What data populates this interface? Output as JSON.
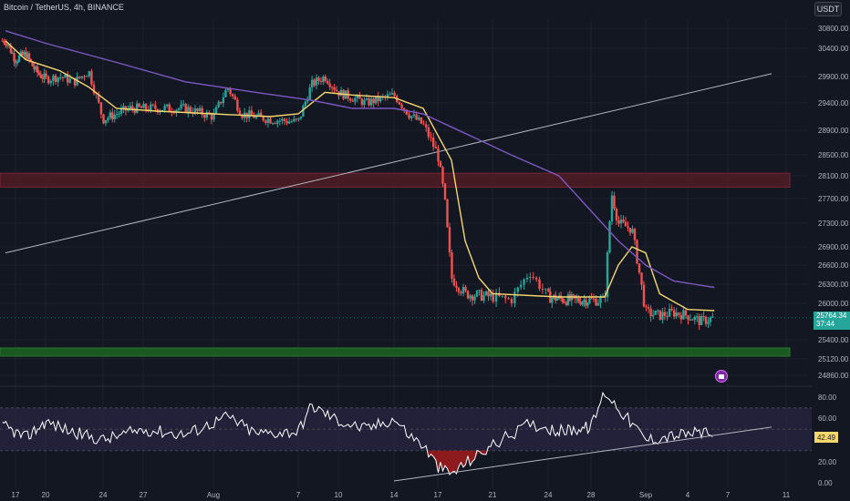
{
  "header": {
    "title": "Bitcoin / TetherUS, 4h, BINANCE",
    "currency_button": "USDT"
  },
  "price_axis_ticks": [
    "30800.00",
    "30400.00",
    "29900.00",
    "29400.00",
    "28900.00",
    "28500.00",
    "28100.00",
    "27700.00",
    "27300.00",
    "26900.00",
    "26600.00",
    "26300.00",
    "26000.00",
    "25400.00",
    "25120.00",
    "24860.00"
  ],
  "rsi_axis_ticks": [
    "80.00",
    "60.00",
    "20.00",
    "0.00"
  ],
  "time_axis_ticks": [
    "17",
    "20",
    "24",
    "27",
    "Aug",
    "7",
    "10",
    "14",
    "17",
    "21",
    "24",
    "28",
    "Sep",
    "4",
    "7",
    "11"
  ],
  "last_price": {
    "price": "25764.34",
    "countdown": "37:44"
  },
  "rsi_value": "42.49",
  "colors": {
    "background": "#131722",
    "up": "#26a69a",
    "down": "#ef5350",
    "ma_fast": "#f5d76e",
    "ma_slow": "#7e57c2",
    "resistance_zone": "#4a1c25",
    "support_zone": "#1b5e20",
    "trendline": "#b2b5be",
    "rsi_line": "#ffffff",
    "rsi_band": "#2a2443",
    "oversold_fill": "#b71c1c"
  },
  "chart_data": [
    {
      "type": "candlestick",
      "title": "Bitcoin / TetherUS, 4h, BINANCE",
      "y_axis_unit": "USDT",
      "ylim": [
        24760,
        30960
      ],
      "x_ticks": [
        "17",
        "20",
        "24",
        "27",
        "Aug",
        "7",
        "10",
        "14",
        "17",
        "21",
        "24",
        "28",
        "Sep",
        "4",
        "7",
        "11"
      ],
      "y_ticks": [
        30800,
        30400,
        29900,
        29400,
        28900,
        28500,
        28100,
        27700,
        27300,
        26900,
        26600,
        26300,
        26000,
        25400,
        25120,
        24860
      ],
      "price_anchors": [
        {
          "x": "Jul 16",
          "price": 30550
        },
        {
          "x": "Jul 17",
          "price": 30200
        },
        {
          "x": "Jul 18",
          "price": 30300
        },
        {
          "x": "Jul 19",
          "price": 30000
        },
        {
          "x": "Jul 20",
          "price": 29850
        },
        {
          "x": "Jul 21",
          "price": 29900
        },
        {
          "x": "Jul 22",
          "price": 29800
        },
        {
          "x": "Jul 23",
          "price": 30000
        },
        {
          "x": "Jul 24",
          "price": 29100
        },
        {
          "x": "Jul 26",
          "price": 29300
        },
        {
          "x": "Jul 28",
          "price": 29300
        },
        {
          "x": "Jul 30",
          "price": 29300
        },
        {
          "x": "Aug 1",
          "price": 29150
        },
        {
          "x": "Aug 2",
          "price": 29700
        },
        {
          "x": "Aug 3",
          "price": 29200
        },
        {
          "x": "Aug 5",
          "price": 29100
        },
        {
          "x": "Aug 7",
          "price": 29050
        },
        {
          "x": "Aug 8",
          "price": 29750
        },
        {
          "x": "Aug 9",
          "price": 29900
        },
        {
          "x": "Aug 10",
          "price": 29600
        },
        {
          "x": "Aug 12",
          "price": 29400
        },
        {
          "x": "Aug 14",
          "price": 29550
        },
        {
          "x": "Aug 15",
          "price": 29200
        },
        {
          "x": "Aug 16",
          "price": 29000
        },
        {
          "x": "Aug 17",
          "price": 28500
        },
        {
          "x": "Aug 17 pm",
          "price": 27700
        },
        {
          "x": "Aug 18",
          "price": 26400
        },
        {
          "x": "Aug 19",
          "price": 26150
        },
        {
          "x": "Aug 21",
          "price": 26100
        },
        {
          "x": "Aug 22",
          "price": 26050
        },
        {
          "x": "Aug 23",
          "price": 26500
        },
        {
          "x": "Aug 24",
          "price": 26100
        },
        {
          "x": "Aug 26",
          "price": 26050
        },
        {
          "x": "Aug 29",
          "price": 26050
        },
        {
          "x": "Aug 29 pm",
          "price": 27800
        },
        {
          "x": "Aug 30",
          "price": 27300
        },
        {
          "x": "Aug 31",
          "price": 27200
        },
        {
          "x": "Sep 1",
          "price": 25850
        },
        {
          "x": "Sep 2",
          "price": 25800
        },
        {
          "x": "Sep 3",
          "price": 25850
        },
        {
          "x": "Sep 4",
          "price": 25800
        },
        {
          "x": "Sep 5",
          "price": 25700
        },
        {
          "x": "Sep 6",
          "price": 25764.34
        }
      ],
      "last_price": 25764.34,
      "moving_averages": [
        {
          "color": "#f5d76e",
          "points": [
            {
              "x": "Jul 16",
              "y": 30550
            },
            {
              "x": "Jul 18",
              "y": 30200
            },
            {
              "x": "Jul 21",
              "y": 30000
            },
            {
              "x": "Jul 23",
              "y": 29700
            },
            {
              "x": "Jul 25",
              "y": 29300
            },
            {
              "x": "Jul 28",
              "y": 29250
            },
            {
              "x": "Aug 1",
              "y": 29200
            },
            {
              "x": "Aug 5",
              "y": 29150
            },
            {
              "x": "Aug 7",
              "y": 29200
            },
            {
              "x": "Aug 9",
              "y": 29600
            },
            {
              "x": "Aug 11",
              "y": 29550
            },
            {
              "x": "Aug 14",
              "y": 29500
            },
            {
              "x": "Aug 16",
              "y": 29300
            },
            {
              "x": "Aug 18",
              "y": 28400
            },
            {
              "x": "Aug 19",
              "y": 27000
            },
            {
              "x": "Aug 20",
              "y": 26400
            },
            {
              "x": "Aug 21",
              "y": 26150
            },
            {
              "x": "Aug 25",
              "y": 26100
            },
            {
              "x": "Aug 28",
              "y": 26100
            },
            {
              "x": "Aug 29",
              "y": 26100
            },
            {
              "x": "Aug 30",
              "y": 26600
            },
            {
              "x": "Aug 31",
              "y": 26900
            },
            {
              "x": "Sep 1",
              "y": 26800
            },
            {
              "x": "Sep 2",
              "y": 26150
            },
            {
              "x": "Sep 4",
              "y": 25900
            },
            {
              "x": "Sep 6",
              "y": 25880
            }
          ]
        },
        {
          "color": "#7e57c2",
          "points": [
            {
              "x": "Jul 16",
              "y": 30750
            },
            {
              "x": "Jul 20",
              "y": 30500
            },
            {
              "x": "Jul 25",
              "y": 30150
            },
            {
              "x": "Jul 30",
              "y": 29800
            },
            {
              "x": "Aug 4",
              "y": 29600
            },
            {
              "x": "Aug 8",
              "y": 29450
            },
            {
              "x": "Aug 11",
              "y": 29300
            },
            {
              "x": "Aug 14",
              "y": 29300
            },
            {
              "x": "Aug 16",
              "y": 29200
            },
            {
              "x": "Aug 19",
              "y": 28850
            },
            {
              "x": "Aug 22",
              "y": 28500
            },
            {
              "x": "Aug 25",
              "y": 28100
            },
            {
              "x": "Aug 28",
              "y": 27500
            },
            {
              "x": "Aug 30",
              "y": 27000
            },
            {
              "x": "Sep 1",
              "y": 26600
            },
            {
              "x": "Sep 3",
              "y": 26350
            },
            {
              "x": "Sep 6",
              "y": 26250
            }
          ]
        }
      ],
      "zones": [
        {
          "label": "resistance",
          "from": 27900,
          "to": 28150
        },
        {
          "label": "support",
          "from": 25200,
          "to": 25280
        }
      ],
      "trendline": {
        "from": {
          "x": "Jul 16",
          "y": 26800
        },
        "to": {
          "x": "Sep 10",
          "y": 29950
        }
      },
      "grid": true
    },
    {
      "type": "line",
      "indicator": "RSI",
      "ylim": [
        0,
        100
      ],
      "y_ticks": [
        80,
        60,
        20,
        0
      ],
      "band": [
        30,
        70
      ],
      "last_value": 42.49,
      "points": [
        {
          "x": "Jul 16",
          "y": 52
        },
        {
          "x": "Jul 18",
          "y": 42
        },
        {
          "x": "Jul 20",
          "y": 57
        },
        {
          "x": "Jul 22",
          "y": 47
        },
        {
          "x": "Jul 24",
          "y": 40
        },
        {
          "x": "Jul 27",
          "y": 50
        },
        {
          "x": "Jul 30",
          "y": 45
        },
        {
          "x": "Aug 2",
          "y": 62
        },
        {
          "x": "Aug 4",
          "y": 46
        },
        {
          "x": "Aug 7",
          "y": 48
        },
        {
          "x": "Aug 8",
          "y": 72
        },
        {
          "x": "Aug 10",
          "y": 58
        },
        {
          "x": "Aug 12",
          "y": 50
        },
        {
          "x": "Aug 14",
          "y": 60
        },
        {
          "x": "Aug 15",
          "y": 45
        },
        {
          "x": "Aug 16",
          "y": 35
        },
        {
          "x": "Aug 17",
          "y": 15
        },
        {
          "x": "Aug 18",
          "y": 8
        },
        {
          "x": "Aug 19",
          "y": 18
        },
        {
          "x": "Aug 21",
          "y": 35
        },
        {
          "x": "Aug 23",
          "y": 55
        },
        {
          "x": "Aug 25",
          "y": 48
        },
        {
          "x": "Aug 28",
          "y": 52
        },
        {
          "x": "Aug 29",
          "y": 85
        },
        {
          "x": "Aug 30",
          "y": 70
        },
        {
          "x": "Sep 1",
          "y": 40
        },
        {
          "x": "Sep 3",
          "y": 44
        },
        {
          "x": "Sep 5",
          "y": 47
        },
        {
          "x": "Sep 6",
          "y": 42.49
        }
      ],
      "trendline": {
        "from": {
          "x": "Aug 14",
          "y": 0
        },
        "to": {
          "x": "Sep 10",
          "y": 52
        }
      },
      "grid": true
    }
  ]
}
